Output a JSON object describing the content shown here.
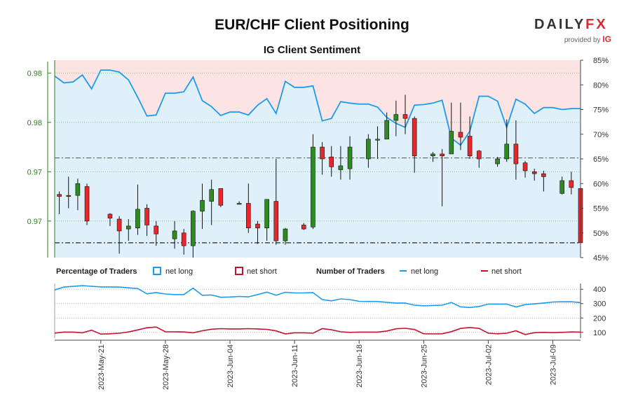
{
  "title": "EUR/CHF Client Positioning",
  "subtitle": "IG Client Sentiment",
  "brand": {
    "name_a": "DAILY",
    "name_b": "FX",
    "provided_by": "provided by",
    "ig": "IG"
  },
  "colors": {
    "up": "#2e8b22",
    "down": "#e8262b",
    "long": "#1d9be8",
    "short": "#c4122f",
    "axis_left": "#2e7d1e"
  },
  "legend": {
    "percentage_label": "Percentage of Traders",
    "number_label": "Number of Traders",
    "net_long": "net long",
    "net_short": "net short"
  },
  "chart_data": [
    {
      "type": "candlestick",
      "title": "EUR/CHF Client Positioning",
      "y_left_ticks": [
        "0.98",
        "0.98",
        "0.97",
        "0.97"
      ],
      "y_left_tick_values": [
        0.982,
        0.977,
        0.972,
        0.967
      ],
      "y_left_range": [
        0.9633,
        0.9833
      ],
      "y_right_ticks": [
        "85%",
        "80%",
        "75%",
        "70%",
        "65%",
        "60%",
        "55%",
        "50%",
        "45%"
      ],
      "y_right_range": [
        45,
        85
      ],
      "reference_lines": [
        0.9734,
        0.9648
      ],
      "candles": [
        {
          "x": 0.5,
          "o": 0.9697,
          "h": 0.97,
          "l": 0.9677,
          "c": 0.9695
        },
        {
          "x": 1.5,
          "o": 0.9696,
          "h": 0.9715,
          "l": 0.9683,
          "c": 0.9695
        },
        {
          "x": 2.5,
          "o": 0.9696,
          "h": 0.9713,
          "l": 0.9681,
          "c": 0.9708
        },
        {
          "x": 3.5,
          "o": 0.9705,
          "h": 0.9708,
          "l": 0.9666,
          "c": 0.967
        },
        {
          "x": 6.0,
          "o": 0.9677,
          "h": 0.9678,
          "l": 0.9665,
          "c": 0.9673
        },
        {
          "x": 7.0,
          "o": 0.9672,
          "h": 0.9675,
          "l": 0.9637,
          "c": 0.966
        },
        {
          "x": 8.0,
          "o": 0.9662,
          "h": 0.9672,
          "l": 0.965,
          "c": 0.9665
        },
        {
          "x": 9.0,
          "o": 0.9663,
          "h": 0.9707,
          "l": 0.9656,
          "c": 0.9682
        },
        {
          "x": 10.0,
          "o": 0.9683,
          "h": 0.9687,
          "l": 0.9655,
          "c": 0.9666
        },
        {
          "x": 11.0,
          "o": 0.9665,
          "h": 0.967,
          "l": 0.9645,
          "c": 0.9657
        },
        {
          "x": 13.0,
          "o": 0.9652,
          "h": 0.967,
          "l": 0.9642,
          "c": 0.966
        },
        {
          "x": 14.0,
          "o": 0.9658,
          "h": 0.9662,
          "l": 0.9636,
          "c": 0.9645
        },
        {
          "x": 15.0,
          "o": 0.9645,
          "h": 0.9681,
          "l": 0.9633,
          "c": 0.968
        },
        {
          "x": 16.0,
          "o": 0.968,
          "h": 0.9708,
          "l": 0.9662,
          "c": 0.9691
        },
        {
          "x": 17.0,
          "o": 0.969,
          "h": 0.9712,
          "l": 0.9666,
          "c": 0.9702
        },
        {
          "x": 18.0,
          "o": 0.9703,
          "h": 0.9703,
          "l": 0.9684,
          "c": 0.9686
        },
        {
          "x": 20.0,
          "o": 0.9688,
          "h": 0.969,
          "l": 0.9687,
          "c": 0.9688
        },
        {
          "x": 21.0,
          "o": 0.9688,
          "h": 0.9708,
          "l": 0.9658,
          "c": 0.9663
        },
        {
          "x": 22.0,
          "o": 0.9667,
          "h": 0.967,
          "l": 0.9647,
          "c": 0.9663
        },
        {
          "x": 23.0,
          "o": 0.9663,
          "h": 0.9692,
          "l": 0.965,
          "c": 0.9692
        },
        {
          "x": 24.0,
          "o": 0.969,
          "h": 0.9733,
          "l": 0.9646,
          "c": 0.965
        },
        {
          "x": 25.0,
          "o": 0.965,
          "h": 0.9663,
          "l": 0.9646,
          "c": 0.9662
        },
        {
          "x": 27.0,
          "o": 0.9666,
          "h": 0.9668,
          "l": 0.9661,
          "c": 0.9662
        },
        {
          "x": 28.0,
          "o": 0.9664,
          "h": 0.9758,
          "l": 0.9662,
          "c": 0.9745
        },
        {
          "x": 29.0,
          "o": 0.9745,
          "h": 0.975,
          "l": 0.9717,
          "c": 0.9733
        },
        {
          "x": 30.0,
          "o": 0.9735,
          "h": 0.9746,
          "l": 0.9715,
          "c": 0.9725
        },
        {
          "x": 31.0,
          "o": 0.9722,
          "h": 0.9746,
          "l": 0.9712,
          "c": 0.9726
        },
        {
          "x": 32.0,
          "o": 0.9723,
          "h": 0.9756,
          "l": 0.9712,
          "c": 0.9745
        },
        {
          "x": 34.0,
          "o": 0.9733,
          "h": 0.9758,
          "l": 0.9724,
          "c": 0.9753
        },
        {
          "x": 35.0,
          "o": 0.9753,
          "h": 0.9766,
          "l": 0.9733,
          "c": 0.9753
        },
        {
          "x": 36.0,
          "o": 0.9753,
          "h": 0.978,
          "l": 0.9753,
          "c": 0.9772
        },
        {
          "x": 37.0,
          "o": 0.9772,
          "h": 0.9792,
          "l": 0.9756,
          "c": 0.9778
        },
        {
          "x": 38.0,
          "o": 0.9778,
          "h": 0.9798,
          "l": 0.9758,
          "c": 0.9774
        },
        {
          "x": 39.0,
          "o": 0.9774,
          "h": 0.9776,
          "l": 0.9719,
          "c": 0.9736
        },
        {
          "x": 41.0,
          "o": 0.9736,
          "h": 0.974,
          "l": 0.973,
          "c": 0.9738
        },
        {
          "x": 42.0,
          "o": 0.9738,
          "h": 0.9743,
          "l": 0.9685,
          "c": 0.9736
        },
        {
          "x": 43.0,
          "o": 0.9738,
          "h": 0.979,
          "l": 0.9738,
          "c": 0.9761
        },
        {
          "x": 44.0,
          "o": 0.976,
          "h": 0.979,
          "l": 0.9742,
          "c": 0.9755
        },
        {
          "x": 45.0,
          "o": 0.9756,
          "h": 0.9776,
          "l": 0.9733,
          "c": 0.9736
        },
        {
          "x": 46.0,
          "o": 0.9741,
          "h": 0.9742,
          "l": 0.9724,
          "c": 0.9733
        },
        {
          "x": 48.0,
          "o": 0.9728,
          "h": 0.9735,
          "l": 0.9725,
          "c": 0.9733
        },
        {
          "x": 49.0,
          "o": 0.9733,
          "h": 0.9773,
          "l": 0.973,
          "c": 0.9748
        },
        {
          "x": 50.0,
          "o": 0.9748,
          "h": 0.9772,
          "l": 0.9712,
          "c": 0.9728
        },
        {
          "x": 51.0,
          "o": 0.9729,
          "h": 0.9731,
          "l": 0.9714,
          "c": 0.9721
        },
        {
          "x": 52.0,
          "o": 0.972,
          "h": 0.9723,
          "l": 0.9711,
          "c": 0.9718
        },
        {
          "x": 53.0,
          "o": 0.9718,
          "h": 0.9721,
          "l": 0.97,
          "c": 0.9715
        },
        {
          "x": 55.0,
          "o": 0.9698,
          "h": 0.9715,
          "l": 0.9697,
          "c": 0.9711
        },
        {
          "x": 56.0,
          "o": 0.9711,
          "h": 0.972,
          "l": 0.9697,
          "c": 0.9704
        },
        {
          "x": 57.0,
          "o": 0.9703,
          "h": 0.9709,
          "l": 0.9643,
          "c": 0.9648
        }
      ],
      "sentiment_long_pct_x": [
        0,
        1,
        2,
        3,
        4,
        5,
        6,
        7,
        8,
        9,
        10,
        11,
        12,
        13,
        14,
        15,
        16,
        17,
        18,
        19,
        20,
        21,
        22,
        23,
        24,
        25,
        26,
        27,
        28,
        29,
        30,
        31,
        32,
        33,
        34,
        35,
        36,
        37,
        38,
        39,
        40,
        41,
        42,
        43,
        44,
        45,
        46,
        47,
        48,
        49,
        50,
        51,
        52,
        53,
        54,
        55,
        56,
        57
      ],
      "sentiment_long_pct": [
        81.8,
        80.4,
        80.6,
        82.0,
        79.2,
        83.0,
        83.0,
        82.6,
        81.0,
        77.5,
        73.7,
        73.9,
        78.3,
        78.3,
        78.6,
        81.6,
        76.8,
        75.6,
        73.8,
        74.5,
        74.5,
        73.9,
        75.9,
        77.2,
        74.2,
        80.7,
        79.5,
        79.5,
        79.8,
        72.7,
        73.2,
        76.6,
        76.3,
        76.1,
        76.1,
        75.5,
        73.4,
        72.2,
        71.4,
        75.9,
        76.0,
        76.3,
        76.9,
        69.2,
        67.8,
        70.6,
        77.7,
        77.7,
        76.7,
        71.4,
        77.1,
        76.1,
        74.2,
        75.4,
        75.4,
        75.0,
        75.2,
        75.2
      ],
      "y_small_ticks": [
        "400",
        "300",
        "200",
        "100"
      ],
      "y_small_range": [
        60,
        440
      ],
      "traders_long": [
        395,
        415,
        420,
        425,
        421,
        416,
        416,
        415,
        410,
        405,
        368,
        377,
        367,
        363,
        363,
        408,
        358,
        360,
        344,
        346,
        350,
        347,
        363,
        380,
        358,
        379,
        374,
        374,
        377,
        328,
        319,
        333,
        328,
        316,
        315,
        315,
        309,
        304,
        304,
        289,
        285,
        287,
        289,
        308,
        278,
        273,
        280,
        297,
        297,
        297,
        277,
        293,
        298,
        304,
        311,
        313,
        313,
        307
      ],
      "traders_short": [
        95,
        102,
        102,
        97,
        115,
        88,
        90,
        94,
        103,
        117,
        132,
        137,
        104,
        104,
        103,
        97,
        111,
        122,
        126,
        124,
        124,
        126,
        124,
        121,
        110,
        89,
        97,
        97,
        94,
        126,
        118,
        104,
        100,
        102,
        102,
        102,
        109,
        125,
        128,
        120,
        90,
        89,
        90,
        105,
        127,
        134,
        127,
        94,
        90,
        94,
        111,
        85,
        98,
        100,
        98,
        100,
        103,
        102
      ],
      "x_date_labels": [
        "2023-May-21",
        "2023-May-28",
        "2023-Jun-04",
        "2023-Jun-11",
        "2023-Jun-18",
        "2023-Jun-25",
        "2023-Jul-02",
        "2023-Jul-09"
      ],
      "x_date_positions": [
        5,
        12,
        19,
        26,
        33,
        40,
        47,
        54
      ]
    }
  ]
}
